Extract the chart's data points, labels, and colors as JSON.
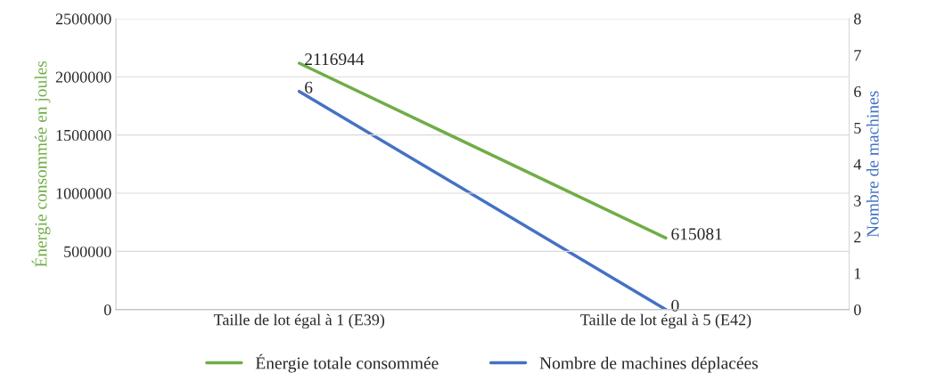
{
  "chart_data": {
    "type": "line",
    "ylabel": "Énergie consommée en joules",
    "y2label": "Nombre de machines",
    "categories": [
      "Taille de lot égal à 1 (E39)",
      "Taille de lot égal à 5 (E42)"
    ],
    "series": [
      {
        "name": "Énergie totale consommée",
        "color": "#70ad47",
        "values": [
          2116944,
          615081
        ]
      },
      {
        "name": "Nombre de machines déplacées",
        "color": "#4472c4",
        "values": [
          6,
          0
        ],
        "axis": "y2"
      }
    ],
    "ylim": [
      0,
      2500000
    ],
    "yticks": [
      0,
      500000,
      1000000,
      1500000,
      2000000,
      2500000
    ],
    "y2lim": [
      0,
      8
    ],
    "y2ticks": [
      0,
      1,
      2,
      3,
      4,
      5,
      6,
      7,
      8
    ],
    "data_labels": true,
    "grid": "y",
    "legend": "bottom",
    "marker": "none",
    "line_style": "solid"
  }
}
